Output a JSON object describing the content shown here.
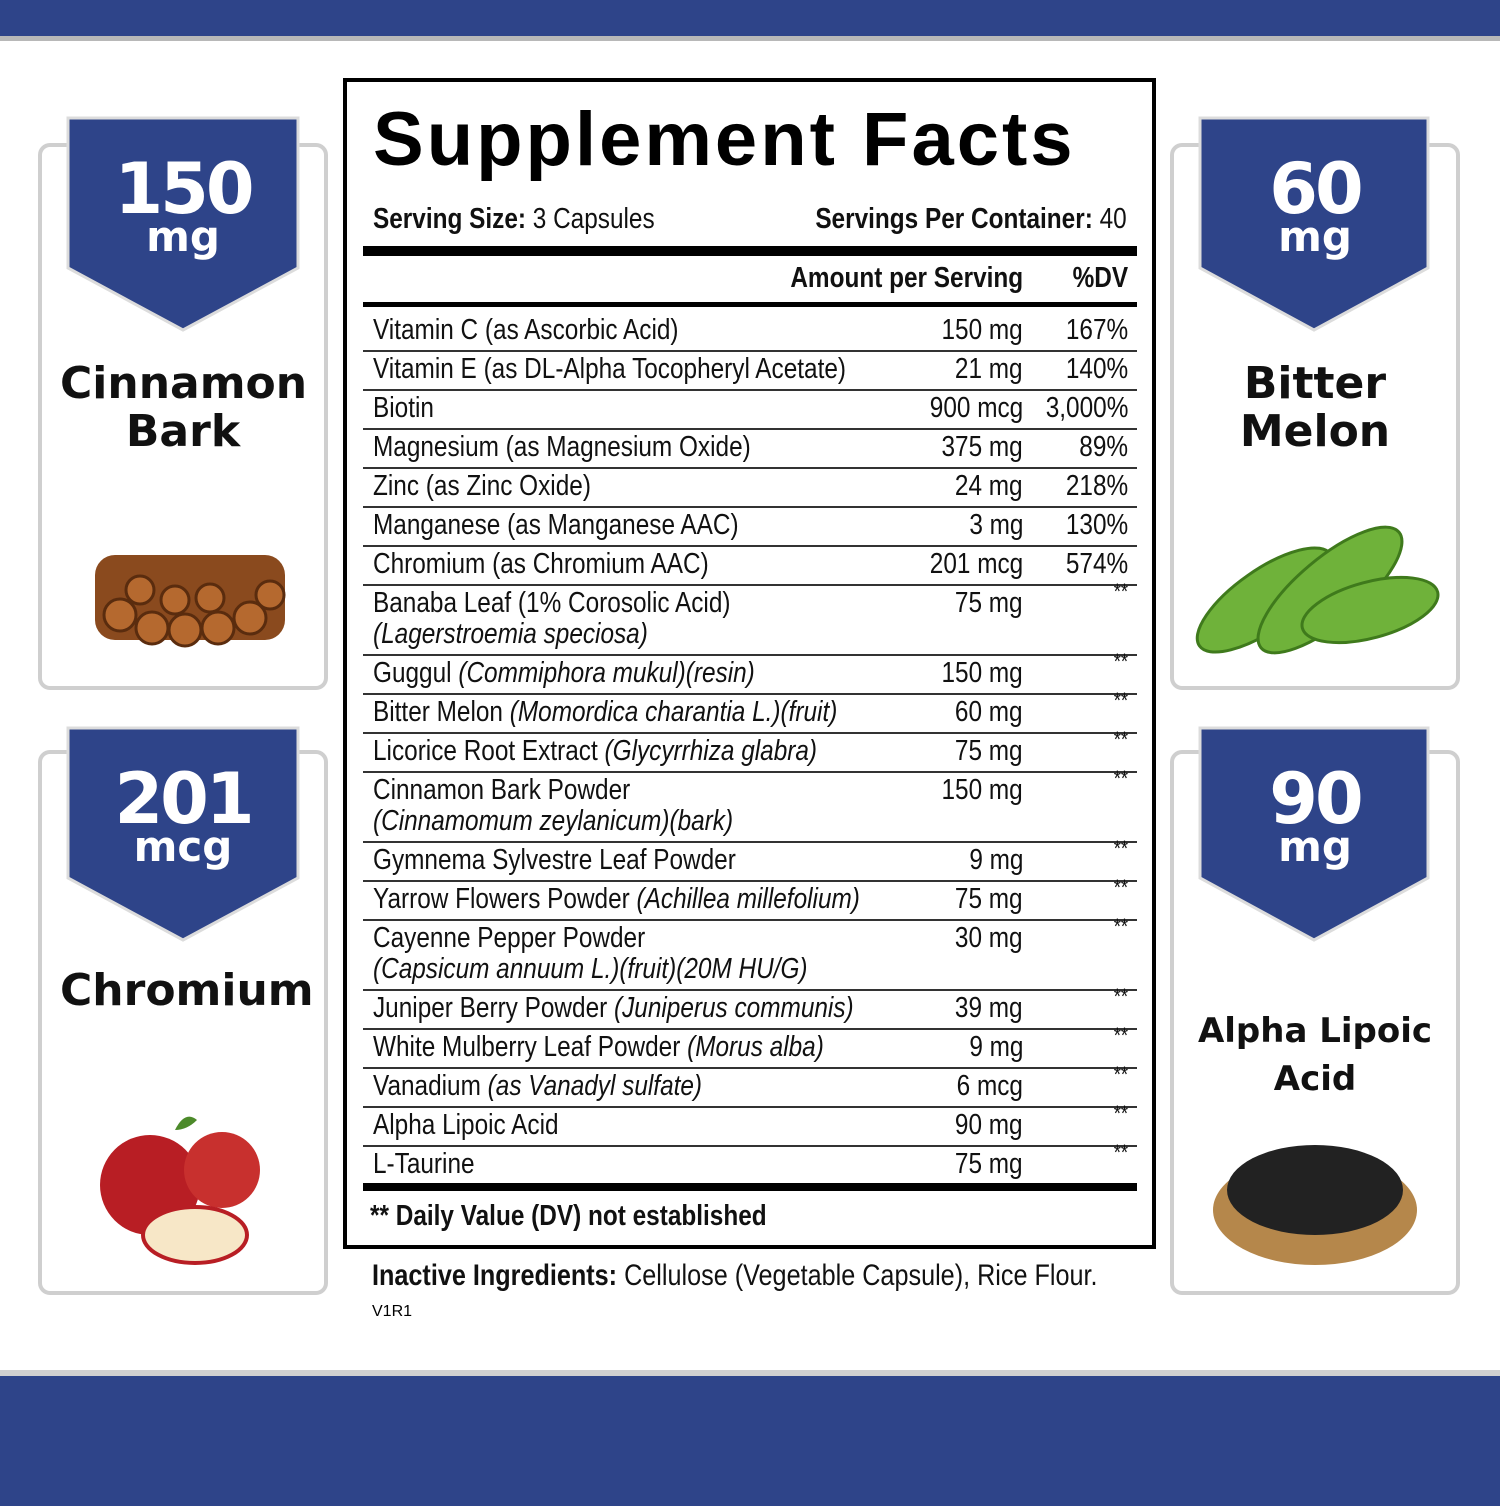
{
  "header": {
    "title": "Supplement Facts",
    "serving_size_label": "Serving Size:",
    "serving_size": "3 Capsules",
    "servings_label": "Servings Per Container:",
    "servings": "40"
  },
  "table": {
    "amount_header": "Amount per Serving",
    "dv_header": "%DV",
    "rows": [
      {
        "name": "Vitamin C (as Ascorbic Acid)",
        "amount": "150 mg",
        "dv": "167%"
      },
      {
        "name": "Vitamin E (as DL-Alpha Tocopheryl Acetate)",
        "amount": "21 mg",
        "dv": "140%"
      },
      {
        "name": "Biotin",
        "amount": "900 mcg",
        "dv": "3,000%"
      },
      {
        "name": "Magnesium (as Magnesium Oxide)",
        "amount": "375 mg",
        "dv": "89%"
      },
      {
        "name": "Zinc (as Zinc Oxide)",
        "amount": "24 mg",
        "dv": "218%"
      },
      {
        "name": "Manganese (as Manganese AAC)",
        "amount": "3 mg",
        "dv": "130%"
      },
      {
        "name": "Chromium (as Chromium AAC)",
        "amount": "201 mcg",
        "dv": "574%"
      },
      {
        "name": "Banaba Leaf (1% Corosolic Acid)",
        "second_line": "(Lagerstroemia speciosa)",
        "amount": "75 mg",
        "dv": "**"
      },
      {
        "name": "Guggul",
        "latin": "(Commiphora mukul)(resin)",
        "amount": "150 mg",
        "dv": "**"
      },
      {
        "name": "Bitter Melon",
        "latin": "(Momordica charantia L.)(fruit)",
        "amount": "60 mg",
        "dv": "**"
      },
      {
        "name": "Licorice Root Extract",
        "latin": "(Glycyrrhiza glabra)",
        "amount": "75 mg",
        "dv": "**"
      },
      {
        "name": "Cinnamon Bark Powder",
        "second_line": "(Cinnamomum zeylanicum)(bark)",
        "amount": "150 mg",
        "dv": "**"
      },
      {
        "name": "Gymnema Sylvestre Leaf Powder",
        "amount": "9 mg",
        "dv": "**"
      },
      {
        "name": "Yarrow Flowers Powder",
        "latin": "(Achillea millefolium)",
        "amount": "75 mg",
        "dv": "**"
      },
      {
        "name": "Cayenne Pepper Powder",
        "second_line": "(Capsicum annuum L.)(fruit)(20M HU/G)",
        "amount": "30 mg",
        "dv": "**"
      },
      {
        "name": "Juniper Berry Powder",
        "latin": "(Juniperus communis)",
        "amount": "39 mg",
        "dv": "**"
      },
      {
        "name": "White Mulberry Leaf Powder",
        "latin": "(Morus alba)",
        "amount": "9 mg",
        "dv": "**"
      },
      {
        "name": "Vanadium",
        "latin": "(as Vanadyl sulfate)",
        "amount": "6 mcg",
        "dv": "**"
      },
      {
        "name": "Alpha Lipoic Acid",
        "amount": "90 mg",
        "dv": "**"
      },
      {
        "name": "L-Taurine",
        "amount": "75 mg",
        "dv": "**"
      }
    ],
    "footnote": "** Daily Value (DV) not established"
  },
  "inactive": {
    "label": "Inactive Ingredients:",
    "text": "Cellulose (Vegetable Capsule), Rice Flour.",
    "code": "V1R1"
  },
  "cards": [
    {
      "amount": "150",
      "unit": "mg",
      "label": "Cinnamon Bark"
    },
    {
      "amount": "201",
      "unit": "mcg",
      "label": "Chromium"
    },
    {
      "amount": "60",
      "unit": "mg",
      "label": "Bitter Melon"
    },
    {
      "amount": "90",
      "unit": "mg",
      "label": "Alpha Lipoic Acid"
    }
  ]
}
